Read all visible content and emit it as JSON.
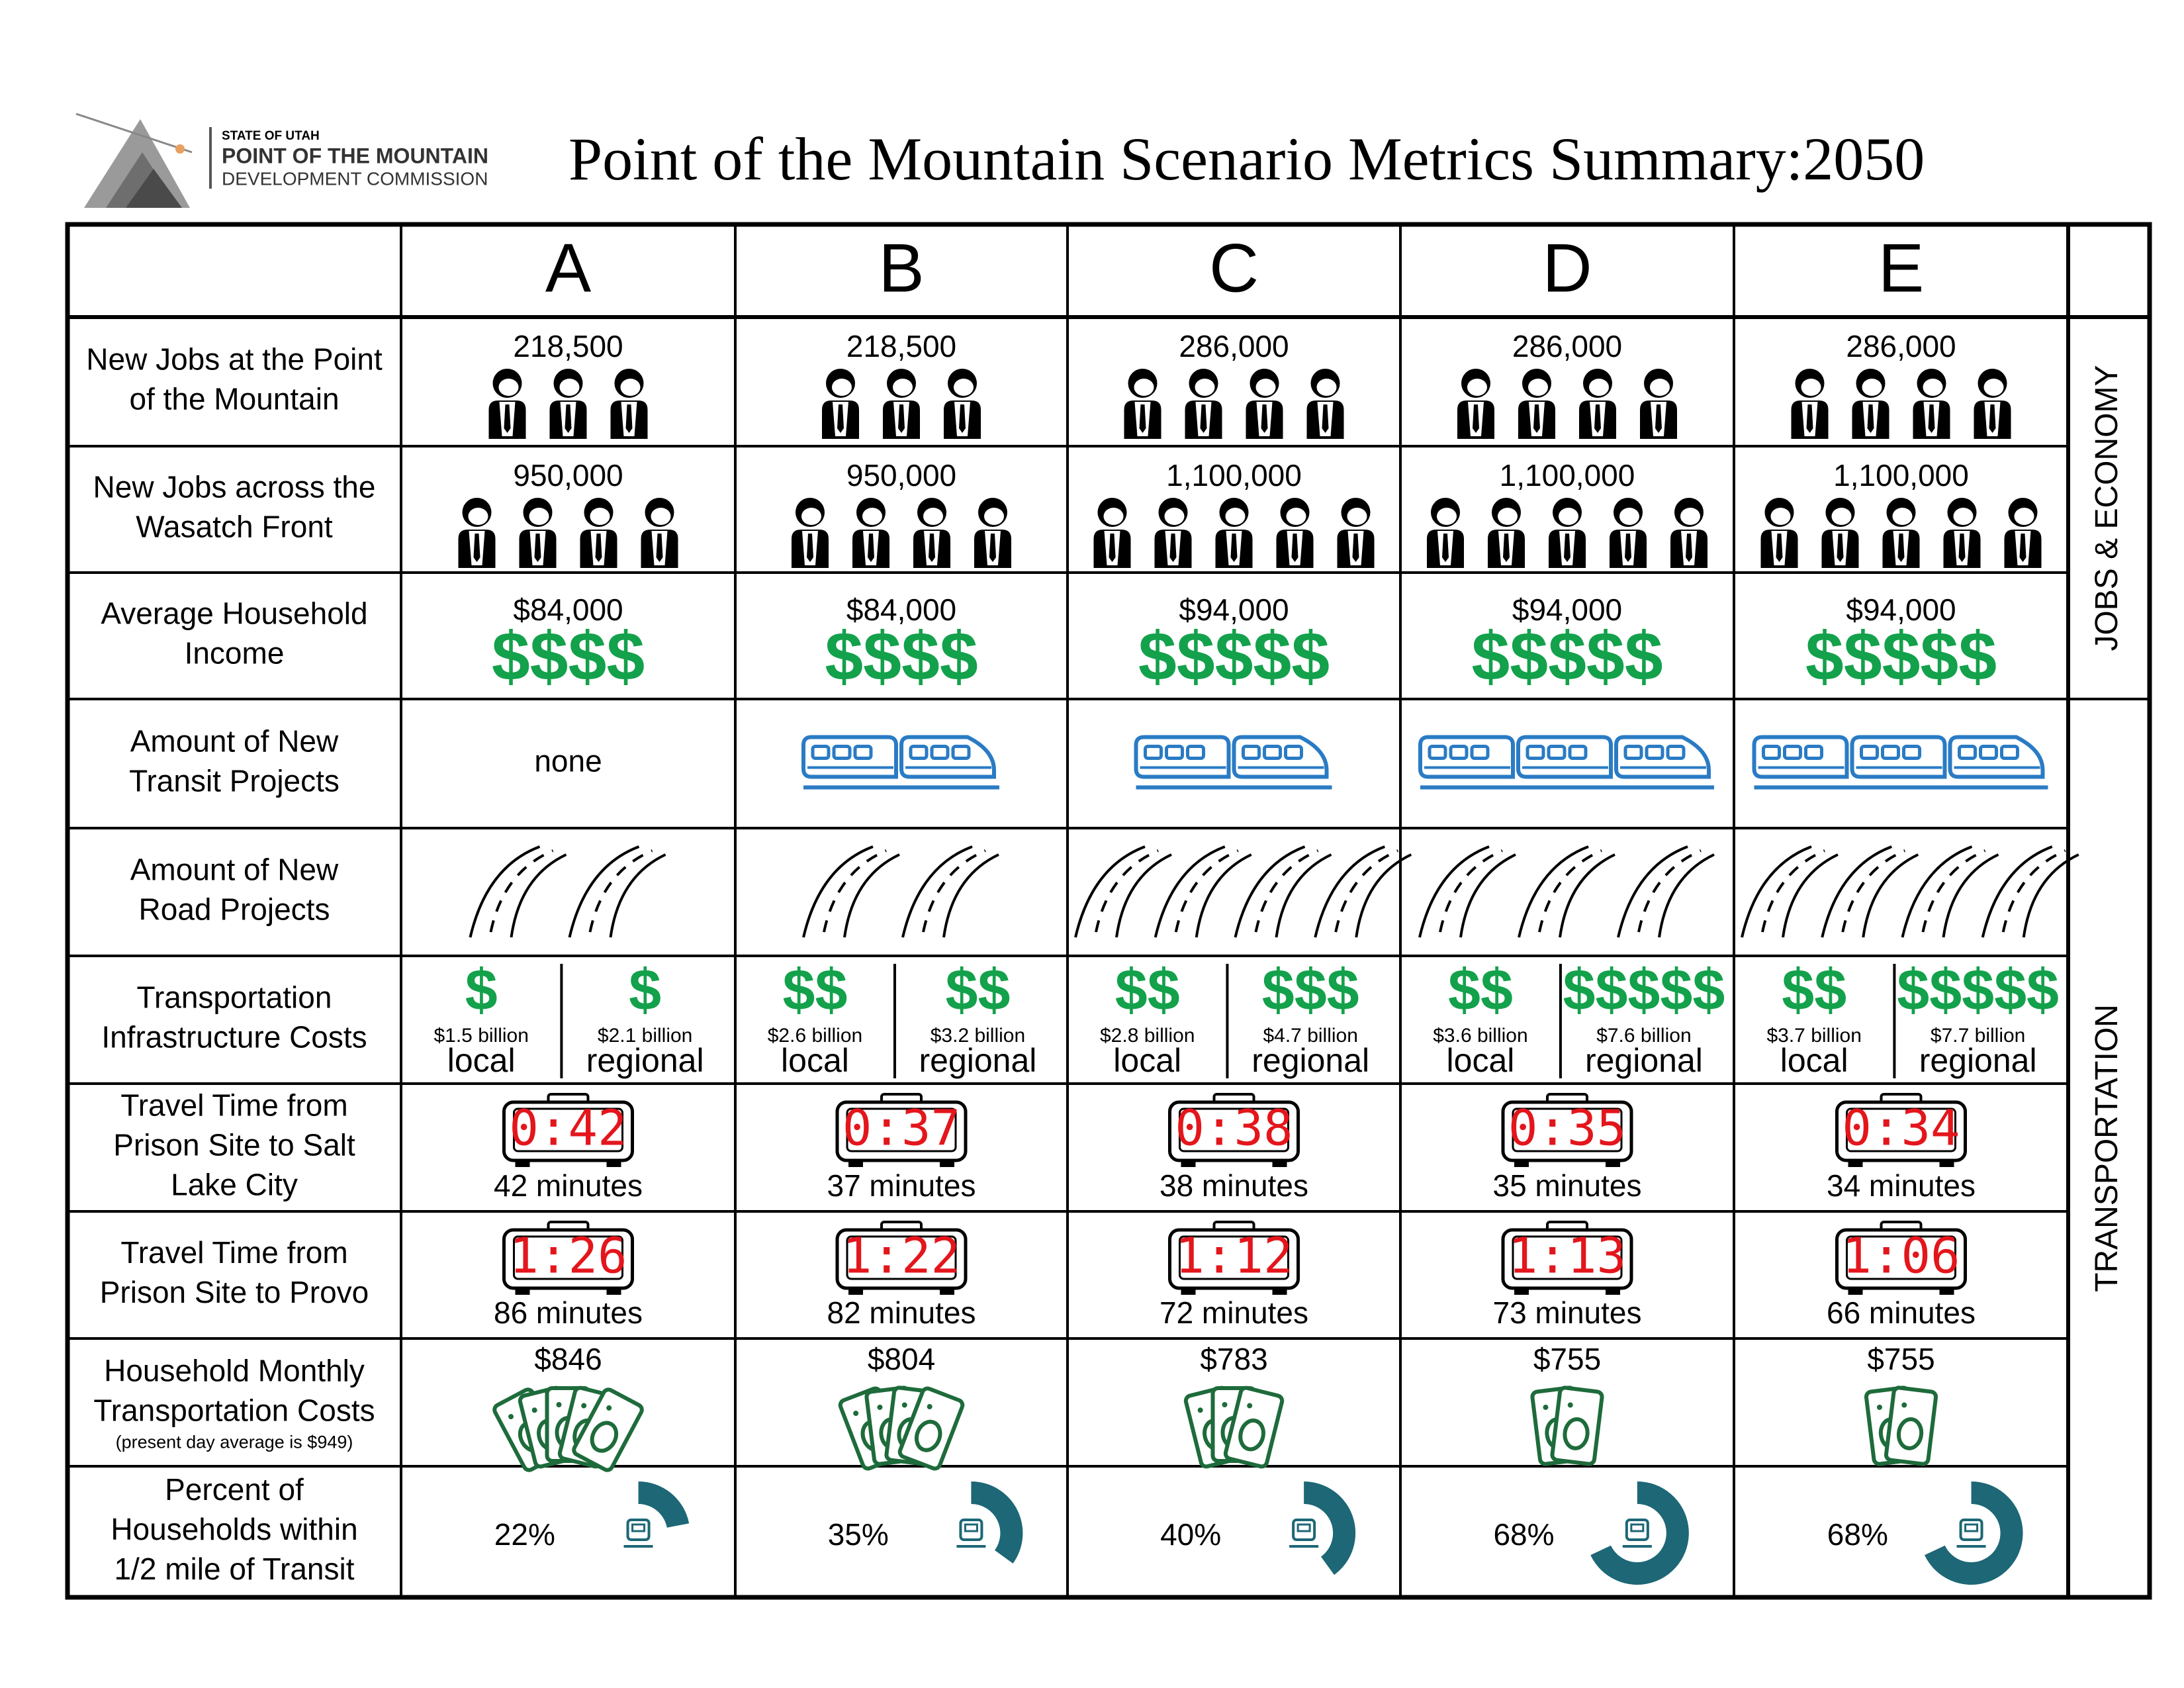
{
  "header": {
    "org": [
      "STATE OF UTAH",
      "POINT OF THE MOUNTAIN",
      "DEVELOPMENT COMMISSION"
    ],
    "title": "Point of the Mountain Scenario Metrics Summary:2050"
  },
  "table": {
    "columns": [
      "A",
      "B",
      "C",
      "D",
      "E"
    ],
    "sections": [
      "JOBS & ECONOMY",
      "TRANSPORTATION"
    ],
    "rows": [
      {
        "label": [
          "New Jobs at the Point",
          "of the Mountain"
        ],
        "values": [
          "218,500",
          "218,500",
          "286,000",
          "286,000",
          "286,000"
        ],
        "people": [
          3,
          3,
          4,
          4,
          4
        ]
      },
      {
        "label": [
          "New Jobs across the",
          "Wasatch Front"
        ],
        "values": [
          "950,000",
          "950,000",
          "1,100,000",
          "1,100,000",
          "1,100,000"
        ],
        "people": [
          4,
          4,
          5,
          5,
          5
        ]
      },
      {
        "label": [
          "Average Household",
          "Income"
        ],
        "values": [
          "$84,000",
          "$84,000",
          "$94,000",
          "$94,000",
          "$94,000"
        ],
        "dollars": [
          "$$$$",
          "$$$$",
          "$$$$$",
          "$$$$$",
          "$$$$$"
        ]
      },
      {
        "label": [
          "Amount of New",
          "Transit Projects"
        ],
        "none": "none",
        "trains": [
          0,
          2,
          2,
          3,
          3
        ]
      },
      {
        "label": [
          "Amount of New",
          "Road Projects"
        ],
        "roads": [
          2,
          2,
          4,
          3,
          4
        ]
      },
      {
        "label": [
          "Transportation",
          "Infrastructure Costs"
        ],
        "costs": [
          {
            "local": {
              "dollars": "$",
              "amount": "$1.5 billion",
              "label": "local"
            },
            "regional": {
              "dollars": "$",
              "amount": "$2.1 billion",
              "label": "regional"
            }
          },
          {
            "local": {
              "dollars": "$$",
              "amount": "$2.6 billion",
              "label": "local"
            },
            "regional": {
              "dollars": "$$",
              "amount": "$3.2 billion",
              "label": "regional"
            }
          },
          {
            "local": {
              "dollars": "$$",
              "amount": "$2.8 billion",
              "label": "local"
            },
            "regional": {
              "dollars": "$$$",
              "amount": "$4.7 billion",
              "label": "regional"
            }
          },
          {
            "local": {
              "dollars": "$$",
              "amount": "$3.6 billion",
              "label": "local"
            },
            "regional": {
              "dollars": "$$$$$",
              "amount": "$7.6 billion",
              "label": "regional"
            }
          },
          {
            "local": {
              "dollars": "$$",
              "amount": "$3.7 billion",
              "label": "local"
            },
            "regional": {
              "dollars": "$$$$$",
              "amount": "$7.7 billion",
              "label": "regional"
            }
          }
        ]
      },
      {
        "label": [
          "Travel Time from",
          "Prison Site to Salt",
          "Lake City"
        ],
        "clock": [
          "0:42",
          "0:37",
          "0:38",
          "0:35",
          "0:34"
        ],
        "values": [
          "42 minutes",
          "37 minutes",
          "38 minutes",
          "35 minutes",
          "34 minutes"
        ]
      },
      {
        "label": [
          "Travel Time from",
          "Prison Site to Provo"
        ],
        "clock": [
          "1:26",
          "1:22",
          "1:12",
          "1:13",
          "1:06"
        ],
        "values": [
          "86 minutes",
          "82 minutes",
          "72 minutes",
          "73 minutes",
          "66 minutes"
        ]
      },
      {
        "label": [
          "Household Monthly",
          "Transportation Costs"
        ],
        "note": "(present day average is $949)",
        "values": [
          "$846",
          "$804",
          "$783",
          "$755",
          "$755"
        ],
        "bills": [
          5,
          4,
          3,
          2,
          2
        ]
      },
      {
        "label": [
          "Percent of",
          "Households within",
          "1/2 mile of Transit"
        ],
        "percent": [
          22,
          35,
          40,
          68,
          68
        ],
        "value_labels": [
          "22%",
          "35%",
          "40%",
          "68%",
          "68%"
        ]
      }
    ]
  }
}
